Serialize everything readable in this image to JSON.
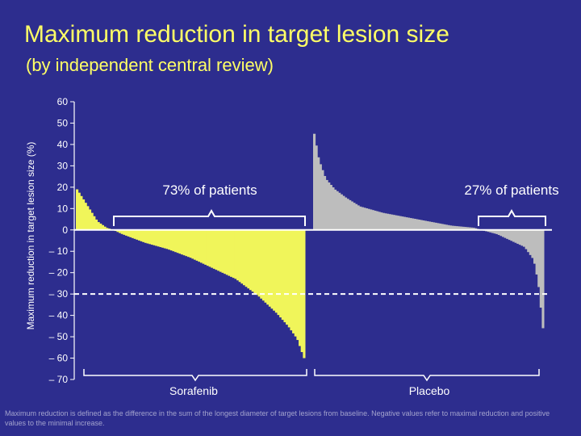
{
  "title": "Maximum reduction in target lesion size",
  "subtitle": "(by independent central review)",
  "footnote": "Maximum reduction is defined as the difference in the sum of the longest diameter of target lesions from baseline. Negative values refer to maximal reduction and positive values to the minimal increase.",
  "colors": {
    "background": "#2d2d8e",
    "title": "#ffff66",
    "sorafenib": "#f0f55a",
    "placebo": "#bdbdbd",
    "text": "#ffffff"
  },
  "chart_data": {
    "type": "bar",
    "ylabel": "Maximum reduction in target lesion size (%)",
    "ylim": [
      -70,
      60
    ],
    "yticks": [
      60,
      50,
      40,
      30,
      20,
      10,
      0,
      -10,
      -20,
      -30,
      -40,
      -50,
      -60,
      -70
    ],
    "ytick_labels": [
      "60",
      "50",
      "40",
      "30",
      "20",
      "10",
      "0",
      "– 10",
      "– 20",
      "– 30",
      "– 40",
      "– 50",
      "– 60",
      "– 70"
    ],
    "reference_line": {
      "y": -30,
      "style": "dashed"
    },
    "series": [
      {
        "name": "Sorafenib",
        "color": "#f0f55a",
        "annotation": "73% of patients",
        "bar_count": 107,
        "profile": [
          [
            0,
            19
          ],
          [
            0.03,
            14
          ],
          [
            0.06,
            9
          ],
          [
            0.09,
            4
          ],
          [
            0.13,
            1
          ],
          [
            0.16,
            0
          ],
          [
            0.2,
            -2
          ],
          [
            0.3,
            -6
          ],
          [
            0.4,
            -9
          ],
          [
            0.5,
            -13
          ],
          [
            0.6,
            -18
          ],
          [
            0.7,
            -23
          ],
          [
            0.8,
            -31
          ],
          [
            0.88,
            -39
          ],
          [
            0.93,
            -45
          ],
          [
            0.97,
            -51
          ],
          [
            1.0,
            -60
          ]
        ]
      },
      {
        "name": "Placebo",
        "color": "#bdbdbd",
        "annotation": "27% of patients",
        "bar_count": 110,
        "profile": [
          [
            0,
            45
          ],
          [
            0.02,
            33
          ],
          [
            0.05,
            24
          ],
          [
            0.09,
            19
          ],
          [
            0.14,
            15
          ],
          [
            0.2,
            11
          ],
          [
            0.3,
            8
          ],
          [
            0.4,
            6
          ],
          [
            0.5,
            4
          ],
          [
            0.6,
            2
          ],
          [
            0.7,
            1
          ],
          [
            0.73,
            0
          ],
          [
            0.8,
            -2
          ],
          [
            0.86,
            -5
          ],
          [
            0.92,
            -8
          ],
          [
            0.96,
            -14
          ],
          [
            0.98,
            -25
          ],
          [
            1.0,
            -46
          ]
        ]
      }
    ]
  }
}
